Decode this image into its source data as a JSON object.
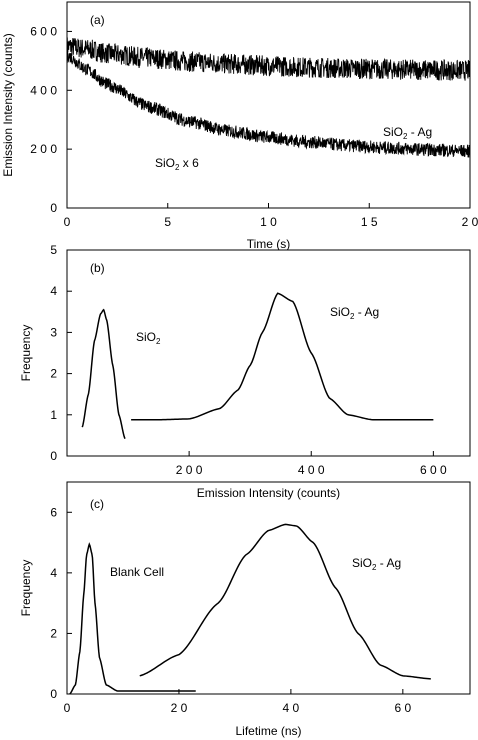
{
  "chart_data": [
    {
      "type": "line",
      "panel_label": "(a)",
      "xlabel": "Time (s)",
      "ylabel": "Emission Intensity (counts)",
      "xlim": [
        0,
        20
      ],
      "ylim": [
        0,
        700
      ],
      "xticks": [
        0,
        5,
        10,
        15,
        20
      ],
      "xtick_labels": [
        "0",
        "5",
        "1 0",
        "1 5",
        "2 0"
      ],
      "yticks": [
        0,
        200,
        400,
        600
      ],
      "ytick_labels": [
        "0",
        "2 0 0",
        "4 0 0",
        "6 0 0"
      ],
      "series": [
        {
          "name": "SiO2 - Ag",
          "label_main": "SiO",
          "label_sub": "2",
          "label_tail": " - Ag",
          "x": [
            0,
            1,
            2,
            4,
            6,
            8,
            10,
            12,
            14,
            16,
            18,
            20
          ],
          "y": [
            550,
            540,
            525,
            510,
            498,
            490,
            483,
            478,
            474,
            471,
            469,
            467
          ],
          "noise": 35
        },
        {
          "name": "SiO2 x 6",
          "label_main": "SiO",
          "label_sub": "2",
          "label_tail": " x 6",
          "x": [
            0,
            1,
            2,
            4,
            6,
            8,
            10,
            12,
            14,
            16,
            18,
            20
          ],
          "y": [
            520,
            470,
            420,
            345,
            295,
            262,
            240,
            224,
            212,
            204,
            198,
            193
          ],
          "noise": 22
        }
      ]
    },
    {
      "type": "line",
      "panel_label": "(b)",
      "xlabel": "Emission Intensity (counts)",
      "ylabel": "Frequency",
      "xlim": [
        0,
        660
      ],
      "ylim": [
        0,
        5
      ],
      "xticks": [
        200,
        400,
        600
      ],
      "xtick_labels": [
        "2 0 0",
        "4 0 0",
        "6 0 0"
      ],
      "yticks": [
        0,
        1,
        2,
        3,
        4,
        5
      ],
      "ytick_labels": [
        "0",
        "1",
        "2",
        "3",
        "4",
        "5"
      ],
      "series": [
        {
          "name": "SiO2",
          "label_main": "SiO",
          "label_sub": "2",
          "label_tail": "",
          "x": [
            25,
            35,
            45,
            55,
            60,
            65,
            75,
            85,
            95
          ],
          "y": [
            0.7,
            1.5,
            2.8,
            3.45,
            3.55,
            3.3,
            2.2,
            1.0,
            0.42
          ]
        },
        {
          "name": "SiO2 - Ag",
          "label_main": "SiO",
          "label_sub": "2",
          "label_tail": " - Ag",
          "x": [
            105,
            150,
            200,
            250,
            280,
            300,
            320,
            345,
            370,
            400,
            430,
            460,
            500,
            550,
            600
          ],
          "y": [
            0.88,
            0.88,
            0.9,
            1.15,
            1.6,
            2.2,
            3.0,
            3.95,
            3.75,
            2.5,
            1.4,
            1.0,
            0.88,
            0.88,
            0.88
          ]
        }
      ]
    },
    {
      "type": "line",
      "panel_label": "(c)",
      "xlabel": "Lifetime (ns)",
      "ylabel": "Frequency",
      "xlim": [
        0,
        72
      ],
      "ylim": [
        0,
        7
      ],
      "xticks": [
        0,
        20,
        40,
        60
      ],
      "xtick_labels": [
        "0",
        "2 0",
        "4 0",
        "6 0"
      ],
      "yticks": [
        0,
        2,
        4,
        6
      ],
      "ytick_labels": [
        "0",
        "2",
        "4",
        "6"
      ],
      "series": [
        {
          "name": "Blank Cell",
          "label_main": "Blank Cell",
          "label_sub": "",
          "label_tail": "",
          "x": [
            0.5,
            1.5,
            2.3,
            3.0,
            3.5,
            4.0,
            4.5,
            5.0,
            5.8,
            7.0,
            9.0,
            14.0,
            23.0
          ],
          "y": [
            0.0,
            0.3,
            1.4,
            3.3,
            4.6,
            4.95,
            4.6,
            3.0,
            1.2,
            0.3,
            0.1,
            0.1,
            0.1
          ]
        },
        {
          "name": "SiO2 - Ag",
          "label_main": "SiO",
          "label_sub": "2",
          "label_tail": " - Ag",
          "x": [
            13,
            20,
            27,
            32,
            36,
            39,
            41,
            44,
            48,
            52,
            56,
            60,
            65
          ],
          "y": [
            0.6,
            1.3,
            3.0,
            4.6,
            5.4,
            5.6,
            5.55,
            5.0,
            3.5,
            2.0,
            0.95,
            0.6,
            0.5
          ]
        }
      ]
    }
  ]
}
